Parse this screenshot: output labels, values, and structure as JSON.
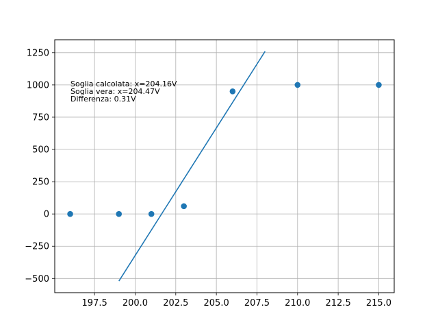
{
  "chart_data": {
    "type": "scatter",
    "xlim": [
      195.05,
      215.95
    ],
    "ylim": [
      -610,
      1350
    ],
    "grid": true,
    "x_ticks": [
      197.5,
      200.0,
      202.5,
      205.0,
      207.5,
      210.0,
      212.5,
      215.0
    ],
    "x_tick_labels": [
      "197.5",
      "200.0",
      "202.5",
      "205.0",
      "207.5",
      "210.0",
      "212.5",
      "215.0"
    ],
    "y_ticks": [
      -500,
      -250,
      0,
      250,
      500,
      750,
      1000,
      1250
    ],
    "y_tick_labels": [
      "−500",
      "−250",
      "0",
      "250",
      "500",
      "750",
      "1000",
      "1250"
    ],
    "series": [
      {
        "kind": "scatter",
        "x": [
          196,
          199,
          201,
          203,
          206,
          210,
          215
        ],
        "y": [
          0,
          0,
          0,
          60,
          950,
          1000,
          1000
        ]
      },
      {
        "kind": "line",
        "x": [
          199,
          208
        ],
        "y": [
          -520,
          1260
        ]
      }
    ],
    "annotation_lines": [
      "Soglia calcolata: x=204.16V",
      "Soglia vera: x=204.47V",
      "Differenza: 0.31V"
    ],
    "colors": {
      "series": "#1f77b4",
      "grid": "#b0b0b0",
      "axes": "#000000"
    }
  }
}
